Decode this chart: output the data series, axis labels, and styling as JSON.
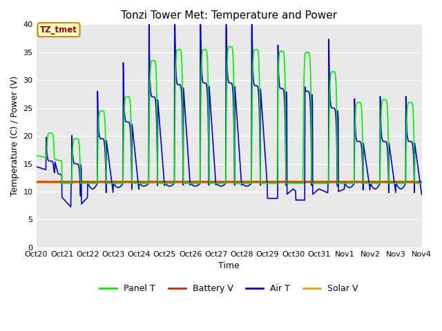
{
  "title": "Tonzi Tower Met: Temperature and Power",
  "xlabel": "Time",
  "ylabel": "Temperature (C) / Power (V)",
  "ylim": [
    0,
    40
  ],
  "yticks": [
    0,
    5,
    10,
    15,
    20,
    25,
    30,
    35,
    40
  ],
  "bg_color": "#e8e8e8",
  "fig_color": "#ffffff",
  "annotation_text": "TZ_tmet",
  "annotation_color": "#990000",
  "annotation_bg": "#ffffcc",
  "annotation_border": "#cc8800",
  "series": {
    "panel_t": {
      "label": "Panel T",
      "color": "#00ee00",
      "lw": 1.2
    },
    "battery_v": {
      "label": "Battery V",
      "color": "#dd2200",
      "lw": 1.5
    },
    "air_t": {
      "label": "Air T",
      "color": "#0000cc",
      "lw": 1.2
    },
    "solar_v": {
      "label": "Solar V",
      "color": "#ddaa00",
      "lw": 1.5
    }
  },
  "x_tick_labels": [
    "Oct 20",
    "Oct 21",
    "Oct 22",
    "Oct 23",
    "Oct 24",
    "Oct 25",
    "Oct 26",
    "Oct 27",
    "Oct 28",
    "Oct 29",
    "Oct 30",
    "Oct 31",
    "Nov 1",
    "Nov 2",
    "Nov 3",
    "Nov 4"
  ],
  "n_days": 15,
  "batt_level": 11.8,
  "solar_level": 11.6
}
